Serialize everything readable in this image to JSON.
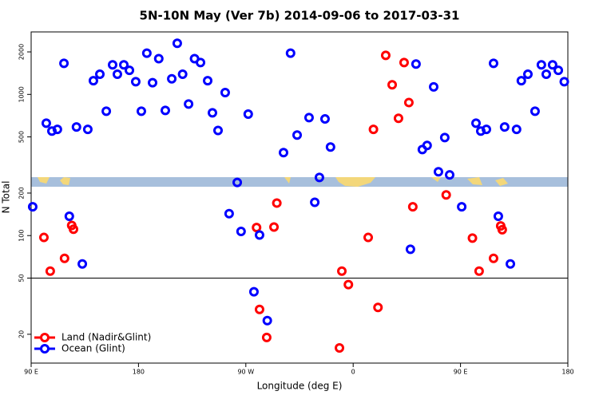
{
  "chart_data": {
    "type": "scatter",
    "title": "5N-10N May (Ver 7b)   2014-09-06 to 2017-03-31",
    "xlabel": "Longitude (deg E)",
    "ylabel": "N Total",
    "xlim": [
      90,
      540
    ],
    "ylim": [
      12.5,
      2770
    ],
    "log_y": true,
    "legend": "bottom-left",
    "reference_line": 50,
    "xticks": [
      {
        "value": 90,
        "label": "90 E"
      },
      180,
      {
        "value": 270,
        "label": "90 W"
      },
      {
        "value": 360,
        "label": "0"
      },
      {
        "value": 450,
        "label": "90 E"
      },
      {
        "value": 540,
        "label": "180"
      }
    ],
    "yticks": [
      20,
      50,
      100,
      200,
      500,
      1000,
      2000
    ],
    "series": [
      {
        "name": "Land (Nadir&Glint)",
        "color": "#ff0000",
        "x": [
          100.7,
          106,
          118,
          124,
          125.5,
          279,
          293.6,
          296,
          281.5,
          287.5,
          348.5,
          350.5,
          356,
          372.6,
          377,
          380.8,
          387.3,
          392.7,
          402.7,
          398,
          406.7,
          410,
          438,
          460,
          465.6,
          477.7,
          483.7,
          485
        ],
        "values": [
          97,
          56,
          69,
          118,
          111,
          114,
          115,
          170,
          30,
          19,
          16,
          56,
          45,
          97,
          565,
          31,
          1890,
          1170,
          1680,
          677,
          876,
          160,
          194,
          96,
          56,
          69,
          117,
          110
        ]
      },
      {
        "name": "Ocean (Glint)",
        "color": "#0000ff",
        "x": [
          91.3,
          102.7,
          107.4,
          112,
          117.5,
          122,
          128,
          132.9,
          137.5,
          142.2,
          147.6,
          153,
          158.3,
          162.3,
          167.7,
          172.4,
          177.7,
          182.4,
          187,
          191.8,
          197,
          202.5,
          207.9,
          212.5,
          217,
          222,
          227,
          232,
          238,
          242,
          246.7,
          252.7,
          262.8,
          256,
          266,
          272,
          276.8,
          281.5,
          288,
          301.6,
          307.5,
          313,
          323,
          327.8,
          331.7,
          336.4,
          341,
          408,
          412.7,
          418,
          422,
          427.5,
          431.5,
          436.8,
          440.9,
          451,
          463,
          467,
          471.7,
          477.7,
          481.7,
          487,
          491.8,
          497,
          501,
          506.5,
          512.5,
          517.8,
          521.9,
          527.2,
          532,
          537
        ],
        "values": [
          160,
          625,
          550,
          565,
          1660,
          137,
          588,
          63,
          565,
          1250,
          1390,
          760,
          1620,
          1390,
          1620,
          1480,
          1230,
          760,
          1960,
          1210,
          1790,
          770,
          1290,
          2300,
          1390,
          855,
          1790,
          1680,
          1250,
          740,
          555,
          1030,
          238,
          143,
          107,
          725,
          40,
          101,
          25,
          387,
          1960,
          515,
          685,
          172,
          258,
          670,
          424,
          80,
          1640,
          407,
          435,
          1130,
          283,
          495,
          269,
          160,
          625,
          550,
          565,
          1660,
          137,
          588,
          63,
          565,
          1250,
          1390,
          760,
          1620,
          1390,
          1620,
          1480,
          1230
        ]
      }
    ]
  }
}
